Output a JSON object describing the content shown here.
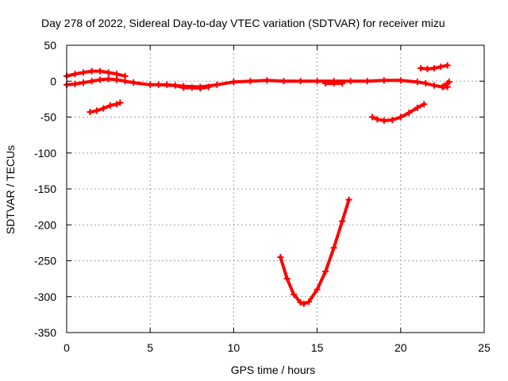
{
  "chart_data": {
    "type": "scatter",
    "title": "Day 278 of 2022, Sidereal Day-to-day VTEC variation (SDTVAR) for receiver mizu",
    "xlabel": "GPS time / hours",
    "ylabel": "SDTVAR / TECUs",
    "xlim": [
      0,
      25
    ],
    "ylim": [
      -350,
      50
    ],
    "x_ticks": [
      0,
      5,
      10,
      15,
      20,
      25
    ],
    "y_ticks": [
      50,
      0,
      -50,
      -100,
      -150,
      -200,
      -250,
      -300,
      -350
    ],
    "grid": true,
    "legend": "none",
    "marker": "plus",
    "color": "#ff0000",
    "series": [
      {
        "x": [
          0.0,
          0.5,
          1.0,
          1.5,
          2.0,
          2.5,
          3.0,
          3.5
        ],
        "y": [
          7,
          10,
          12,
          14,
          14,
          12,
          10,
          7
        ]
      },
      {
        "x": [
          0.0,
          0.5,
          1.0,
          1.5,
          2.0,
          2.5,
          3.0,
          3.5,
          4.0,
          5.0,
          6.0,
          7.0,
          8.0,
          9.0,
          10.0,
          11.0,
          12.0,
          13.0,
          14.0,
          15.0,
          16.0,
          17.0,
          18.0,
          19.0,
          20.0,
          21.0,
          21.5,
          22.0,
          22.5,
          22.8
        ],
        "y": [
          -5,
          -4,
          -2,
          0,
          2,
          3,
          2,
          0,
          -2,
          -5,
          -5,
          -7,
          -8,
          -5,
          -1,
          0,
          1,
          0,
          0,
          0,
          0,
          0,
          0,
          1,
          1,
          -1,
          -3,
          -6,
          -8,
          -8
        ]
      },
      {
        "x": [
          5.5,
          6.5,
          7.0,
          7.5,
          8.0,
          8.5
        ],
        "y": [
          -5,
          -6,
          -9,
          -9,
          -10,
          -8
        ]
      },
      {
        "x": [
          15.5,
          16.0,
          16.5
        ],
        "y": [
          -3,
          -3,
          -3
        ]
      },
      {
        "x": [
          1.4,
          1.8,
          2.2,
          2.6,
          3.0,
          3.2
        ],
        "y": [
          -43,
          -41,
          -38,
          -34,
          -32,
          -30
        ]
      },
      {
        "x": [
          12.8,
          13.2,
          13.6,
          14.0,
          14.2,
          14.5,
          15.0,
          15.5,
          16.0,
          16.5,
          16.9
        ],
        "y": [
          -245,
          -275,
          -297,
          -308,
          -310,
          -307,
          -290,
          -265,
          -232,
          -195,
          -165
        ]
      },
      {
        "x": [
          18.3,
          18.6,
          19.0,
          19.5,
          20.0,
          20.5,
          21.0,
          21.4
        ],
        "y": [
          -50,
          -53,
          -55,
          -54,
          -50,
          -44,
          -37,
          -32
        ]
      },
      {
        "x": [
          21.2,
          21.6,
          22.0,
          22.4,
          22.8
        ],
        "y": [
          18,
          17,
          18,
          20,
          22
        ]
      },
      {
        "x": [
          22.6,
          22.8,
          22.9
        ],
        "y": [
          -7,
          -3,
          -1
        ]
      }
    ]
  }
}
